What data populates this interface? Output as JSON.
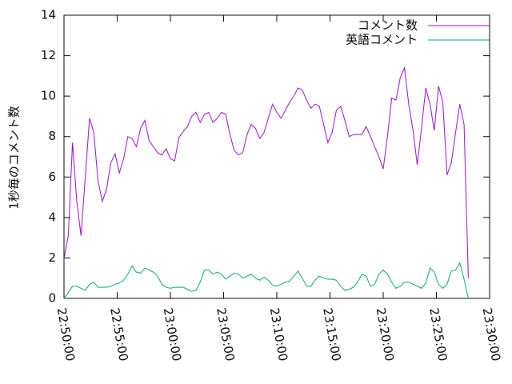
{
  "chart_data": {
    "type": "line",
    "y_label": "1秒毎のコメント数",
    "x": [
      "22:50:00",
      "22:50:24",
      "22:50:48",
      "22:51:12",
      "22:51:36",
      "22:52:00",
      "22:52:24",
      "22:52:48",
      "22:53:12",
      "22:53:36",
      "22:54:00",
      "22:54:24",
      "22:54:48",
      "22:55:12",
      "22:55:36",
      "22:56:00",
      "22:56:24",
      "22:56:48",
      "22:57:12",
      "22:57:36",
      "22:58:00",
      "22:58:24",
      "22:58:48",
      "22:59:12",
      "22:59:36",
      "23:00:00",
      "23:00:24",
      "23:00:48",
      "23:01:12",
      "23:01:36",
      "23:02:00",
      "23:02:24",
      "23:02:48",
      "23:03:12",
      "23:03:36",
      "23:04:00",
      "23:04:24",
      "23:04:48",
      "23:05:12",
      "23:05:36",
      "23:06:00",
      "23:06:24",
      "23:06:48",
      "23:07:12",
      "23:07:36",
      "23:08:00",
      "23:08:24",
      "23:08:48",
      "23:09:12",
      "23:09:36",
      "23:10:00",
      "23:10:24",
      "23:10:48",
      "23:11:12",
      "23:11:36",
      "23:12:00",
      "23:12:24",
      "23:12:48",
      "23:13:12",
      "23:13:36",
      "23:14:00",
      "23:14:24",
      "23:14:48",
      "23:15:12",
      "23:15:36",
      "23:16:00",
      "23:16:24",
      "23:16:48",
      "23:17:12",
      "23:17:36",
      "23:18:00",
      "23:18:24",
      "23:18:48",
      "23:19:12",
      "23:19:36",
      "23:20:00",
      "23:20:24",
      "23:20:48",
      "23:21:12",
      "23:21:36",
      "23:22:00",
      "23:22:24",
      "23:22:48",
      "23:23:12",
      "23:23:36",
      "23:24:00",
      "23:24:24",
      "23:24:48",
      "23:25:12",
      "23:25:36",
      "23:26:00",
      "23:26:24",
      "23:26:48",
      "23:27:12",
      "23:27:36",
      "23:28:00"
    ],
    "series": [
      {
        "name": "コメント数",
        "color": "#9400d3",
        "values": [
          1.95,
          3.1,
          7.7,
          4.8,
          3.1,
          6.0,
          8.9,
          8.2,
          5.8,
          4.8,
          5.4,
          6.7,
          7.15,
          6.2,
          6.9,
          8.0,
          7.9,
          7.5,
          8.4,
          8.8,
          7.8,
          7.5,
          7.2,
          7.1,
          7.4,
          6.9,
          6.8,
          7.95,
          8.25,
          8.5,
          9.0,
          9.2,
          8.7,
          9.1,
          9.2,
          8.7,
          8.9,
          9.2,
          9.1,
          8.1,
          7.3,
          7.1,
          7.2,
          8.1,
          8.6,
          8.4,
          7.9,
          8.2,
          8.9,
          9.6,
          9.2,
          8.9,
          9.3,
          9.7,
          10.0,
          10.4,
          10.3,
          9.8,
          9.4,
          9.6,
          9.5,
          8.6,
          7.7,
          8.2,
          9.3,
          9.5,
          8.8,
          8.0,
          8.1,
          8.1,
          8.1,
          8.5,
          8.0,
          7.5,
          7.0,
          6.4,
          8.0,
          9.9,
          9.8,
          10.9,
          11.4,
          9.6,
          8.3,
          6.6,
          8.4,
          10.4,
          9.6,
          8.3,
          10.5,
          9.7,
          6.1,
          6.7,
          8.2,
          9.6,
          8.6,
          1.0
        ]
      },
      {
        "name": "英語コメント",
        "color": "#009e73",
        "values": [
          0.0,
          0.3,
          0.6,
          0.6,
          0.5,
          0.4,
          0.7,
          0.8,
          0.55,
          0.55,
          0.55,
          0.6,
          0.7,
          0.75,
          0.9,
          1.2,
          1.6,
          1.3,
          1.25,
          1.5,
          1.4,
          1.3,
          1.1,
          0.7,
          0.55,
          0.5,
          0.55,
          0.55,
          0.55,
          0.45,
          0.35,
          0.4,
          0.8,
          1.4,
          1.4,
          1.2,
          1.3,
          1.2,
          0.95,
          1.1,
          1.25,
          1.2,
          1.0,
          1.1,
          1.2,
          1.0,
          0.9,
          1.05,
          0.9,
          0.65,
          0.6,
          0.7,
          0.8,
          0.85,
          1.1,
          1.35,
          1.0,
          0.6,
          0.6,
          0.9,
          1.1,
          1.0,
          0.95,
          0.95,
          0.9,
          0.6,
          0.4,
          0.45,
          0.55,
          0.8,
          1.2,
          1.1,
          0.6,
          0.7,
          1.2,
          1.4,
          1.2,
          0.8,
          0.5,
          0.6,
          0.8,
          0.8,
          0.7,
          0.6,
          0.5,
          0.75,
          1.5,
          1.3,
          0.7,
          0.5,
          0.7,
          1.35,
          1.4,
          1.75,
          0.95,
          0.0
        ]
      }
    ],
    "xlim": [
      "22:50:00",
      "23:30:00"
    ],
    "xticks": [
      "22:50:00",
      "22:55:00",
      "23:00:00",
      "23:05:00",
      "23:10:00",
      "23:15:00",
      "23:20:00",
      "23:25:00",
      "23:30:00"
    ],
    "ylim": [
      0,
      14
    ],
    "yticks": [
      0,
      2,
      4,
      6,
      8,
      10,
      12,
      14
    ],
    "grid": false,
    "legend": "top-right"
  }
}
